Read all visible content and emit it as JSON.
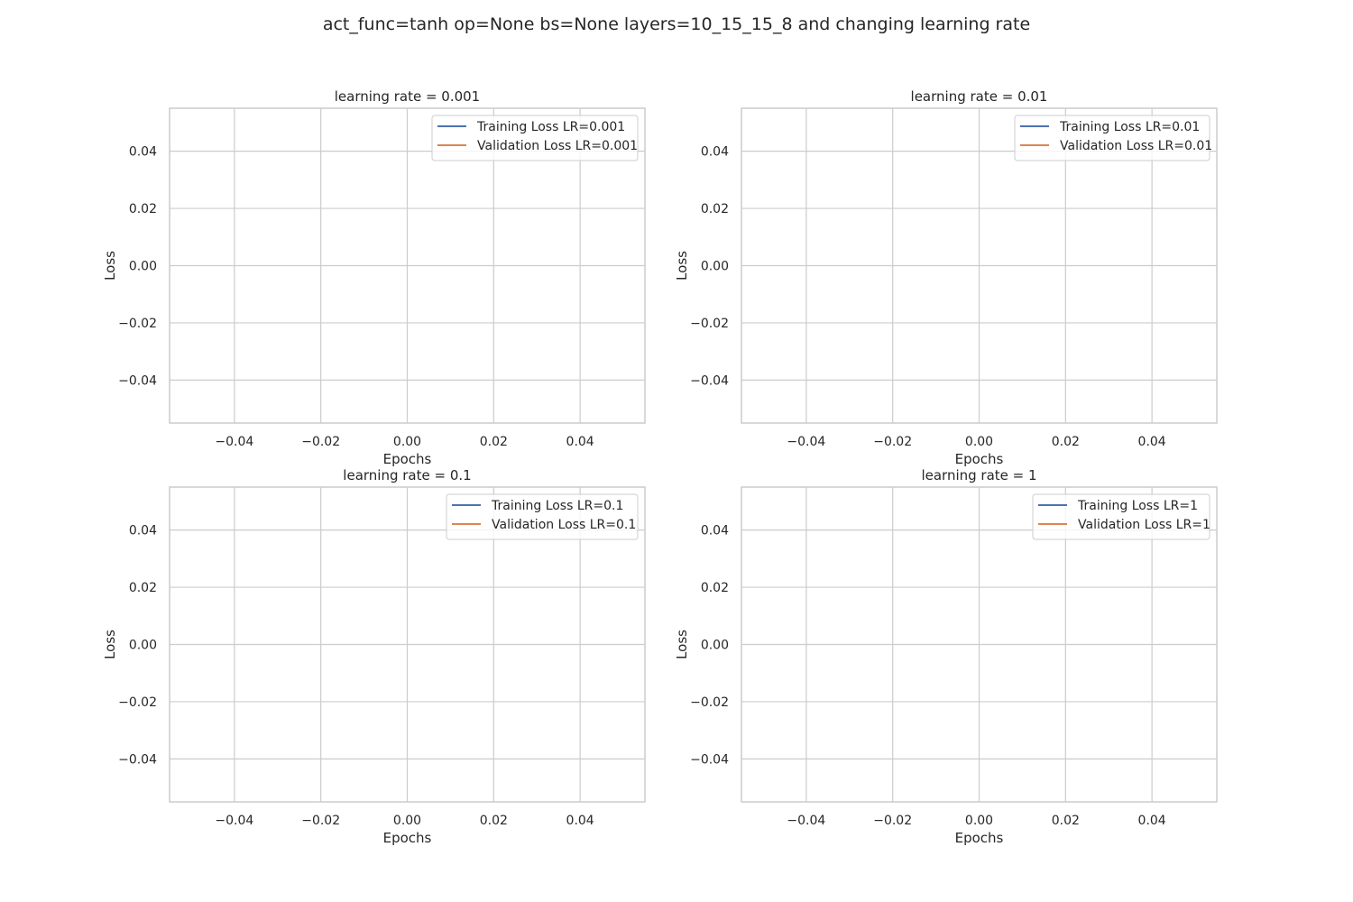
{
  "figure": {
    "title": "act_func=tanh op=None bs=None layers=10_15_15_8 and changing learning rate"
  },
  "colors": {
    "training": "#4c72b0",
    "validation": "#dd8452",
    "grid": "#cccccc",
    "frame": "#cccccc",
    "text": "#262626"
  },
  "chart_data": [
    {
      "type": "line",
      "title": "learning rate = 0.001",
      "xlabel": "Epochs",
      "ylabel": "Loss",
      "xlim": [
        -0.055,
        0.055
      ],
      "ylim": [
        -0.055,
        0.055
      ],
      "xticks": [
        -0.04,
        -0.02,
        0.0,
        0.02,
        0.04
      ],
      "xtick_labels": [
        "−0.04",
        "−0.02",
        "0.00",
        "0.02",
        "0.04"
      ],
      "yticks": [
        0.04,
        0.02,
        0.0,
        -0.02,
        -0.04
      ],
      "ytick_labels": [
        "0.04",
        "0.02",
        "0.00",
        "−0.02",
        "−0.04"
      ],
      "grid": true,
      "legend_position": "upper right",
      "series": [
        {
          "name": "Training Loss LR=0.001",
          "x": [],
          "y": []
        },
        {
          "name": "Validation Loss LR=0.001",
          "x": [],
          "y": []
        }
      ]
    },
    {
      "type": "line",
      "title": "learning rate = 0.01",
      "xlabel": "Epochs",
      "ylabel": "Loss",
      "xlim": [
        -0.055,
        0.055
      ],
      "ylim": [
        -0.055,
        0.055
      ],
      "xticks": [
        -0.04,
        -0.02,
        0.0,
        0.02,
        0.04
      ],
      "xtick_labels": [
        "−0.04",
        "−0.02",
        "0.00",
        "0.02",
        "0.04"
      ],
      "yticks": [
        0.04,
        0.02,
        0.0,
        -0.02,
        -0.04
      ],
      "ytick_labels": [
        "0.04",
        "0.02",
        "0.00",
        "−0.02",
        "−0.04"
      ],
      "grid": true,
      "legend_position": "upper right",
      "series": [
        {
          "name": "Training Loss LR=0.01",
          "x": [],
          "y": []
        },
        {
          "name": "Validation Loss LR=0.01",
          "x": [],
          "y": []
        }
      ]
    },
    {
      "type": "line",
      "title": "learning rate = 0.1",
      "xlabel": "Epochs",
      "ylabel": "Loss",
      "xlim": [
        -0.055,
        0.055
      ],
      "ylim": [
        -0.055,
        0.055
      ],
      "xticks": [
        -0.04,
        -0.02,
        0.0,
        0.02,
        0.04
      ],
      "xtick_labels": [
        "−0.04",
        "−0.02",
        "0.00",
        "0.02",
        "0.04"
      ],
      "yticks": [
        0.04,
        0.02,
        0.0,
        -0.02,
        -0.04
      ],
      "ytick_labels": [
        "0.04",
        "0.02",
        "0.00",
        "−0.02",
        "−0.04"
      ],
      "grid": true,
      "legend_position": "upper right",
      "series": [
        {
          "name": "Training Loss LR=0.1",
          "x": [],
          "y": []
        },
        {
          "name": "Validation Loss LR=0.1",
          "x": [],
          "y": []
        }
      ]
    },
    {
      "type": "line",
      "title": "learning rate = 1",
      "xlabel": "Epochs",
      "ylabel": "Loss",
      "xlim": [
        -0.055,
        0.055
      ],
      "ylim": [
        -0.055,
        0.055
      ],
      "xticks": [
        -0.04,
        -0.02,
        0.0,
        0.02,
        0.04
      ],
      "xtick_labels": [
        "−0.04",
        "−0.02",
        "0.00",
        "0.02",
        "0.04"
      ],
      "yticks": [
        0.04,
        0.02,
        0.0,
        -0.02,
        -0.04
      ],
      "ytick_labels": [
        "0.04",
        "0.02",
        "0.00",
        "−0.02",
        "−0.04"
      ],
      "grid": true,
      "legend_position": "upper right",
      "series": [
        {
          "name": "Training Loss LR=1",
          "x": [],
          "y": []
        },
        {
          "name": "Validation Loss LR=1",
          "x": [],
          "y": []
        }
      ]
    }
  ]
}
